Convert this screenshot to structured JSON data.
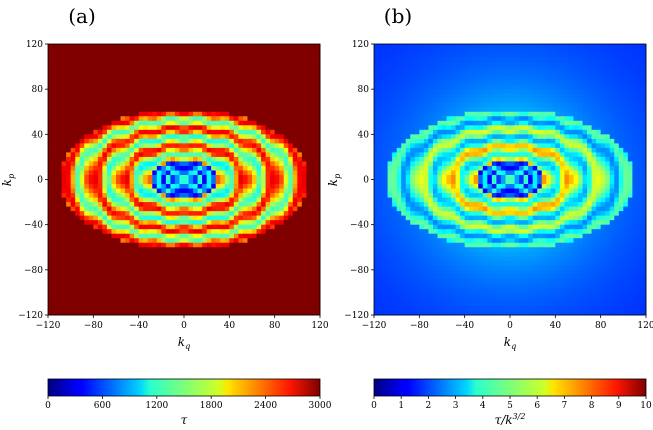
{
  "chart_data": [
    {
      "type": "heatmap",
      "panel_label": "(a)",
      "xlabel": "k_q",
      "ylabel": "k_p",
      "xlim": [
        -120,
        120
      ],
      "ylim": [
        -120,
        120
      ],
      "x_ticks": [
        -120,
        -80,
        -40,
        0,
        40,
        80,
        120
      ],
      "y_ticks": [
        -120,
        -80,
        -40,
        0,
        40,
        80,
        120
      ],
      "colorbar": {
        "label": "τ",
        "range": [
          0,
          3000
        ],
        "ticks": [
          0,
          600,
          1200,
          1800,
          2400,
          3000
        ],
        "colormap": "jet"
      },
      "background_value": 3000,
      "pattern": "concentric elliptical bands centred at the origin; low values inside |k_q| < 30, |k_p| < 15; banded structure extending to |k_q| ≈ 110, |k_p| ≈ 60; saturated elsewhere"
    },
    {
      "type": "heatmap",
      "panel_label": "(b)",
      "xlabel": "k_q",
      "ylabel": "k_p",
      "xlim": [
        -120,
        120
      ],
      "ylim": [
        -120,
        120
      ],
      "x_ticks": [
        -120,
        -80,
        -40,
        0,
        40,
        80,
        120
      ],
      "y_ticks": [
        -120,
        -80,
        -40,
        0,
        40,
        80,
        120
      ],
      "colorbar": {
        "label": "τ/k^{3/2}",
        "range": [
          0,
          10
        ],
        "ticks": [
          0,
          1,
          2,
          3,
          4,
          5,
          6,
          7,
          8,
          9,
          10
        ],
        "colormap": "jet"
      },
      "background_value": 1.5,
      "pattern": "same banded ellipses as (a) scaled by k^{3/2}; high values (≈8–10) in the central bands, decaying to ≈1.5 at large k"
    }
  ]
}
